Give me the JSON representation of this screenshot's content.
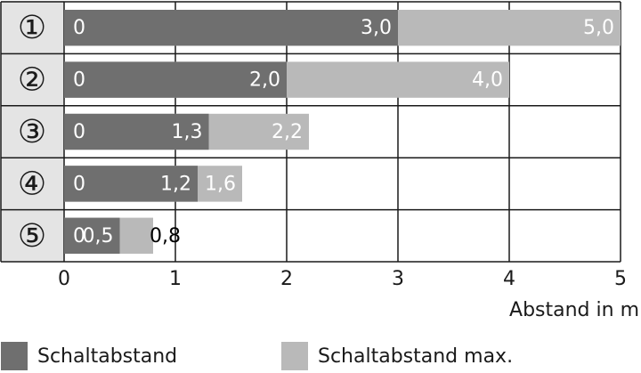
{
  "chart_data": {
    "type": "bar",
    "orientation": "horizontal",
    "overlap": true,
    "categories": [
      "①",
      "②",
      "③",
      "④",
      "⑤"
    ],
    "bar_start": [
      0,
      0,
      0,
      0,
      0
    ],
    "series": [
      {
        "name": "Schaltabstand",
        "color": "#6f6f6f",
        "values": [
          3.0,
          2.0,
          1.3,
          1.2,
          0.5
        ],
        "value_labels": [
          "3,0",
          "2,0",
          "1,3",
          "1,2",
          "0,5"
        ]
      },
      {
        "name": "Schaltabstand max.",
        "color": "#b9b9b9",
        "values": [
          5.0,
          4.0,
          2.2,
          1.6,
          0.8
        ],
        "value_labels": [
          "5,0",
          "4,0",
          "2,2",
          "1,6",
          "0,8"
        ]
      }
    ],
    "xlim": [
      0,
      5
    ],
    "xticks": [
      0,
      1,
      2,
      3,
      4,
      5
    ],
    "xlabel": "Abstand in m",
    "grid": true,
    "legend": "bottom"
  }
}
